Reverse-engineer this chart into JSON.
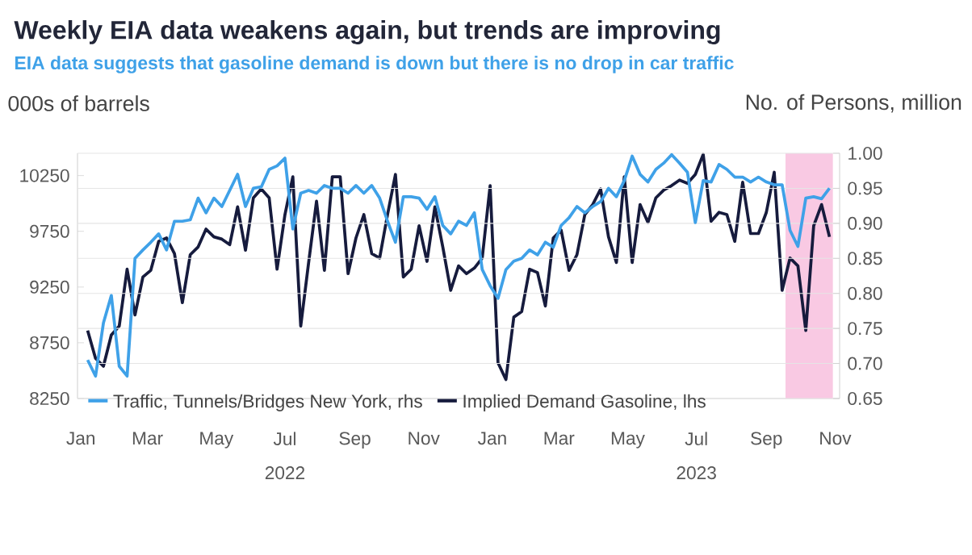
{
  "chart_data": {
    "type": "line",
    "title": "Weekly EIA data weakens again, but trends are improving",
    "subtitle": "EIA data suggests that gasoline demand is down but there is no drop in car traffic",
    "ylabel": "000s of barrels",
    "y2label": "No. of Persons, million",
    "x": [
      "2022-01-07",
      "2022-01-14",
      "2022-01-21",
      "2022-01-28",
      "2022-02-04",
      "2022-02-11",
      "2022-02-18",
      "2022-02-25",
      "2022-03-04",
      "2022-03-11",
      "2022-03-18",
      "2022-03-25",
      "2022-04-01",
      "2022-04-08",
      "2022-04-15",
      "2022-04-22",
      "2022-04-29",
      "2022-05-06",
      "2022-05-13",
      "2022-05-20",
      "2022-05-27",
      "2022-06-03",
      "2022-06-10",
      "2022-06-17",
      "2022-06-24",
      "2022-07-01",
      "2022-07-08",
      "2022-07-15",
      "2022-07-22",
      "2022-07-29",
      "2022-08-05",
      "2022-08-12",
      "2022-08-19",
      "2022-08-26",
      "2022-09-02",
      "2022-09-09",
      "2022-09-16",
      "2022-09-23",
      "2022-09-30",
      "2022-10-07",
      "2022-10-14",
      "2022-10-21",
      "2022-10-28",
      "2022-11-04",
      "2022-11-11",
      "2022-11-18",
      "2022-11-25",
      "2022-12-02",
      "2022-12-09",
      "2022-12-16",
      "2022-12-23",
      "2022-12-30",
      "2023-01-06",
      "2023-01-13",
      "2023-01-20",
      "2023-01-27",
      "2023-02-03",
      "2023-02-10",
      "2023-02-17",
      "2023-02-24",
      "2023-03-03",
      "2023-03-10",
      "2023-03-17",
      "2023-03-24",
      "2023-03-31",
      "2023-04-07",
      "2023-04-14",
      "2023-04-21",
      "2023-04-28",
      "2023-05-05",
      "2023-05-12",
      "2023-05-19",
      "2023-05-26",
      "2023-06-02",
      "2023-06-09",
      "2023-06-16",
      "2023-06-23",
      "2023-06-30",
      "2023-07-07",
      "2023-07-14",
      "2023-07-21",
      "2023-07-28",
      "2023-08-04",
      "2023-08-11",
      "2023-08-18",
      "2023-08-25",
      "2023-09-01",
      "2023-09-08",
      "2023-09-15",
      "2023-09-22",
      "2023-09-29",
      "2023-10-06",
      "2023-10-13",
      "2023-10-20",
      "2023-10-27"
    ],
    "series": [
      {
        "name": "Traffic, Tunnels/Bridges New York, rhs",
        "color": "#3fa1e8",
        "axis": "y2",
        "values": [
          0.705,
          0.682,
          0.758,
          0.797,
          0.696,
          0.682,
          0.85,
          0.862,
          0.873,
          0.885,
          0.862,
          0.903,
          0.903,
          0.905,
          0.936,
          0.915,
          0.936,
          0.924,
          0.947,
          0.97,
          0.924,
          0.95,
          0.952,
          0.977,
          0.982,
          0.993,
          0.892,
          0.943,
          0.947,
          0.943,
          0.954,
          0.95,
          0.95,
          0.943,
          0.954,
          0.943,
          0.954,
          0.936,
          0.903,
          0.873,
          0.938,
          0.938,
          0.936,
          0.92,
          0.938,
          0.897,
          0.885,
          0.903,
          0.897,
          0.915,
          0.834,
          0.811,
          0.793,
          0.834,
          0.846,
          0.85,
          0.862,
          0.855,
          0.873,
          0.866,
          0.897,
          0.908,
          0.924,
          0.915,
          0.924,
          0.931,
          0.95,
          0.938,
          0.961,
          0.996,
          0.97,
          0.959,
          0.977,
          0.986,
          0.998,
          0.986,
          0.973,
          0.901,
          0.961,
          0.959,
          0.984,
          0.977,
          0.966,
          0.966,
          0.959,
          0.966,
          0.959,
          0.955,
          0.955,
          0.89,
          0.867,
          0.936,
          0.938,
          0.935,
          0.95
        ]
      },
      {
        "name": "Implied Demand Gasoline, lhs",
        "color": "#161b3d",
        "values": [
          8860,
          8610,
          8540,
          8820,
          8900,
          9410,
          9000,
          9340,
          9400,
          9660,
          9690,
          9550,
          9110,
          9540,
          9610,
          9770,
          9700,
          9680,
          9630,
          9970,
          9580,
          10050,
          10130,
          10050,
          9410,
          9900,
          10240,
          8900,
          9470,
          10020,
          9400,
          10240,
          10240,
          9370,
          9690,
          9900,
          9550,
          9510,
          9900,
          10260,
          9340,
          9410,
          9800,
          9480,
          9970,
          9610,
          9220,
          9440,
          9370,
          9420,
          9510,
          10160,
          8570,
          8420,
          8980,
          9030,
          9410,
          9380,
          9080,
          9690,
          9760,
          9400,
          9540,
          9900,
          9990,
          10130,
          9700,
          9470,
          10240,
          9470,
          9990,
          9830,
          10050,
          10120,
          10160,
          10210,
          10180,
          10260,
          10440,
          9840,
          9920,
          9900,
          9660,
          10190,
          9730,
          9730,
          9920,
          10280,
          9220,
          9510,
          9440,
          8860,
          9800,
          9990,
          9700
        ]
      }
    ],
    "xlim": [
      "2021-12-29",
      "2023-11-05"
    ],
    "xticks": [
      {
        "value": "2022-01-01",
        "label": "Jan"
      },
      {
        "value": "2022-03-01",
        "label": "Mar"
      },
      {
        "value": "2022-05-01",
        "label": "May"
      },
      {
        "value": "2022-07-01",
        "label": "Jul"
      },
      {
        "value": "2022-09-01",
        "label": "Sep"
      },
      {
        "value": "2022-11-01",
        "label": "Nov"
      },
      {
        "value": "2023-01-01",
        "label": "Jan"
      },
      {
        "value": "2023-03-01",
        "label": "Mar"
      },
      {
        "value": "2023-05-01",
        "label": "May"
      },
      {
        "value": "2023-07-01",
        "label": "Jul"
      },
      {
        "value": "2023-09-01",
        "label": "Sep"
      },
      {
        "value": "2023-11-01",
        "label": "Nov"
      }
    ],
    "ylim": [
      8250,
      10450
    ],
    "yticks": [
      8250,
      8750,
      9250,
      9750,
      10250
    ],
    "y2lim": [
      0.65,
      1.0
    ],
    "y2ticks": [
      {
        "value": 0.65,
        "label": "0.65"
      },
      {
        "value": 0.7,
        "label": "0.70"
      },
      {
        "value": 0.75,
        "label": "0.75"
      },
      {
        "value": 0.8,
        "label": "0.80"
      },
      {
        "value": 0.85,
        "label": "0.85"
      },
      {
        "value": 0.9,
        "label": "0.90"
      },
      {
        "value": 0.95,
        "label": "0.95"
      },
      {
        "value": 1.0,
        "label": "1.00"
      }
    ],
    "bands": [
      {
        "axis": "x",
        "from": "2023-09-18",
        "to": "2023-10-30",
        "color": "#f9c9e3"
      }
    ],
    "annotations": [
      "2022",
      "2023"
    ],
    "grid": "y",
    "legend": "bottom",
    "marker": "none",
    "line_style": "solid"
  }
}
